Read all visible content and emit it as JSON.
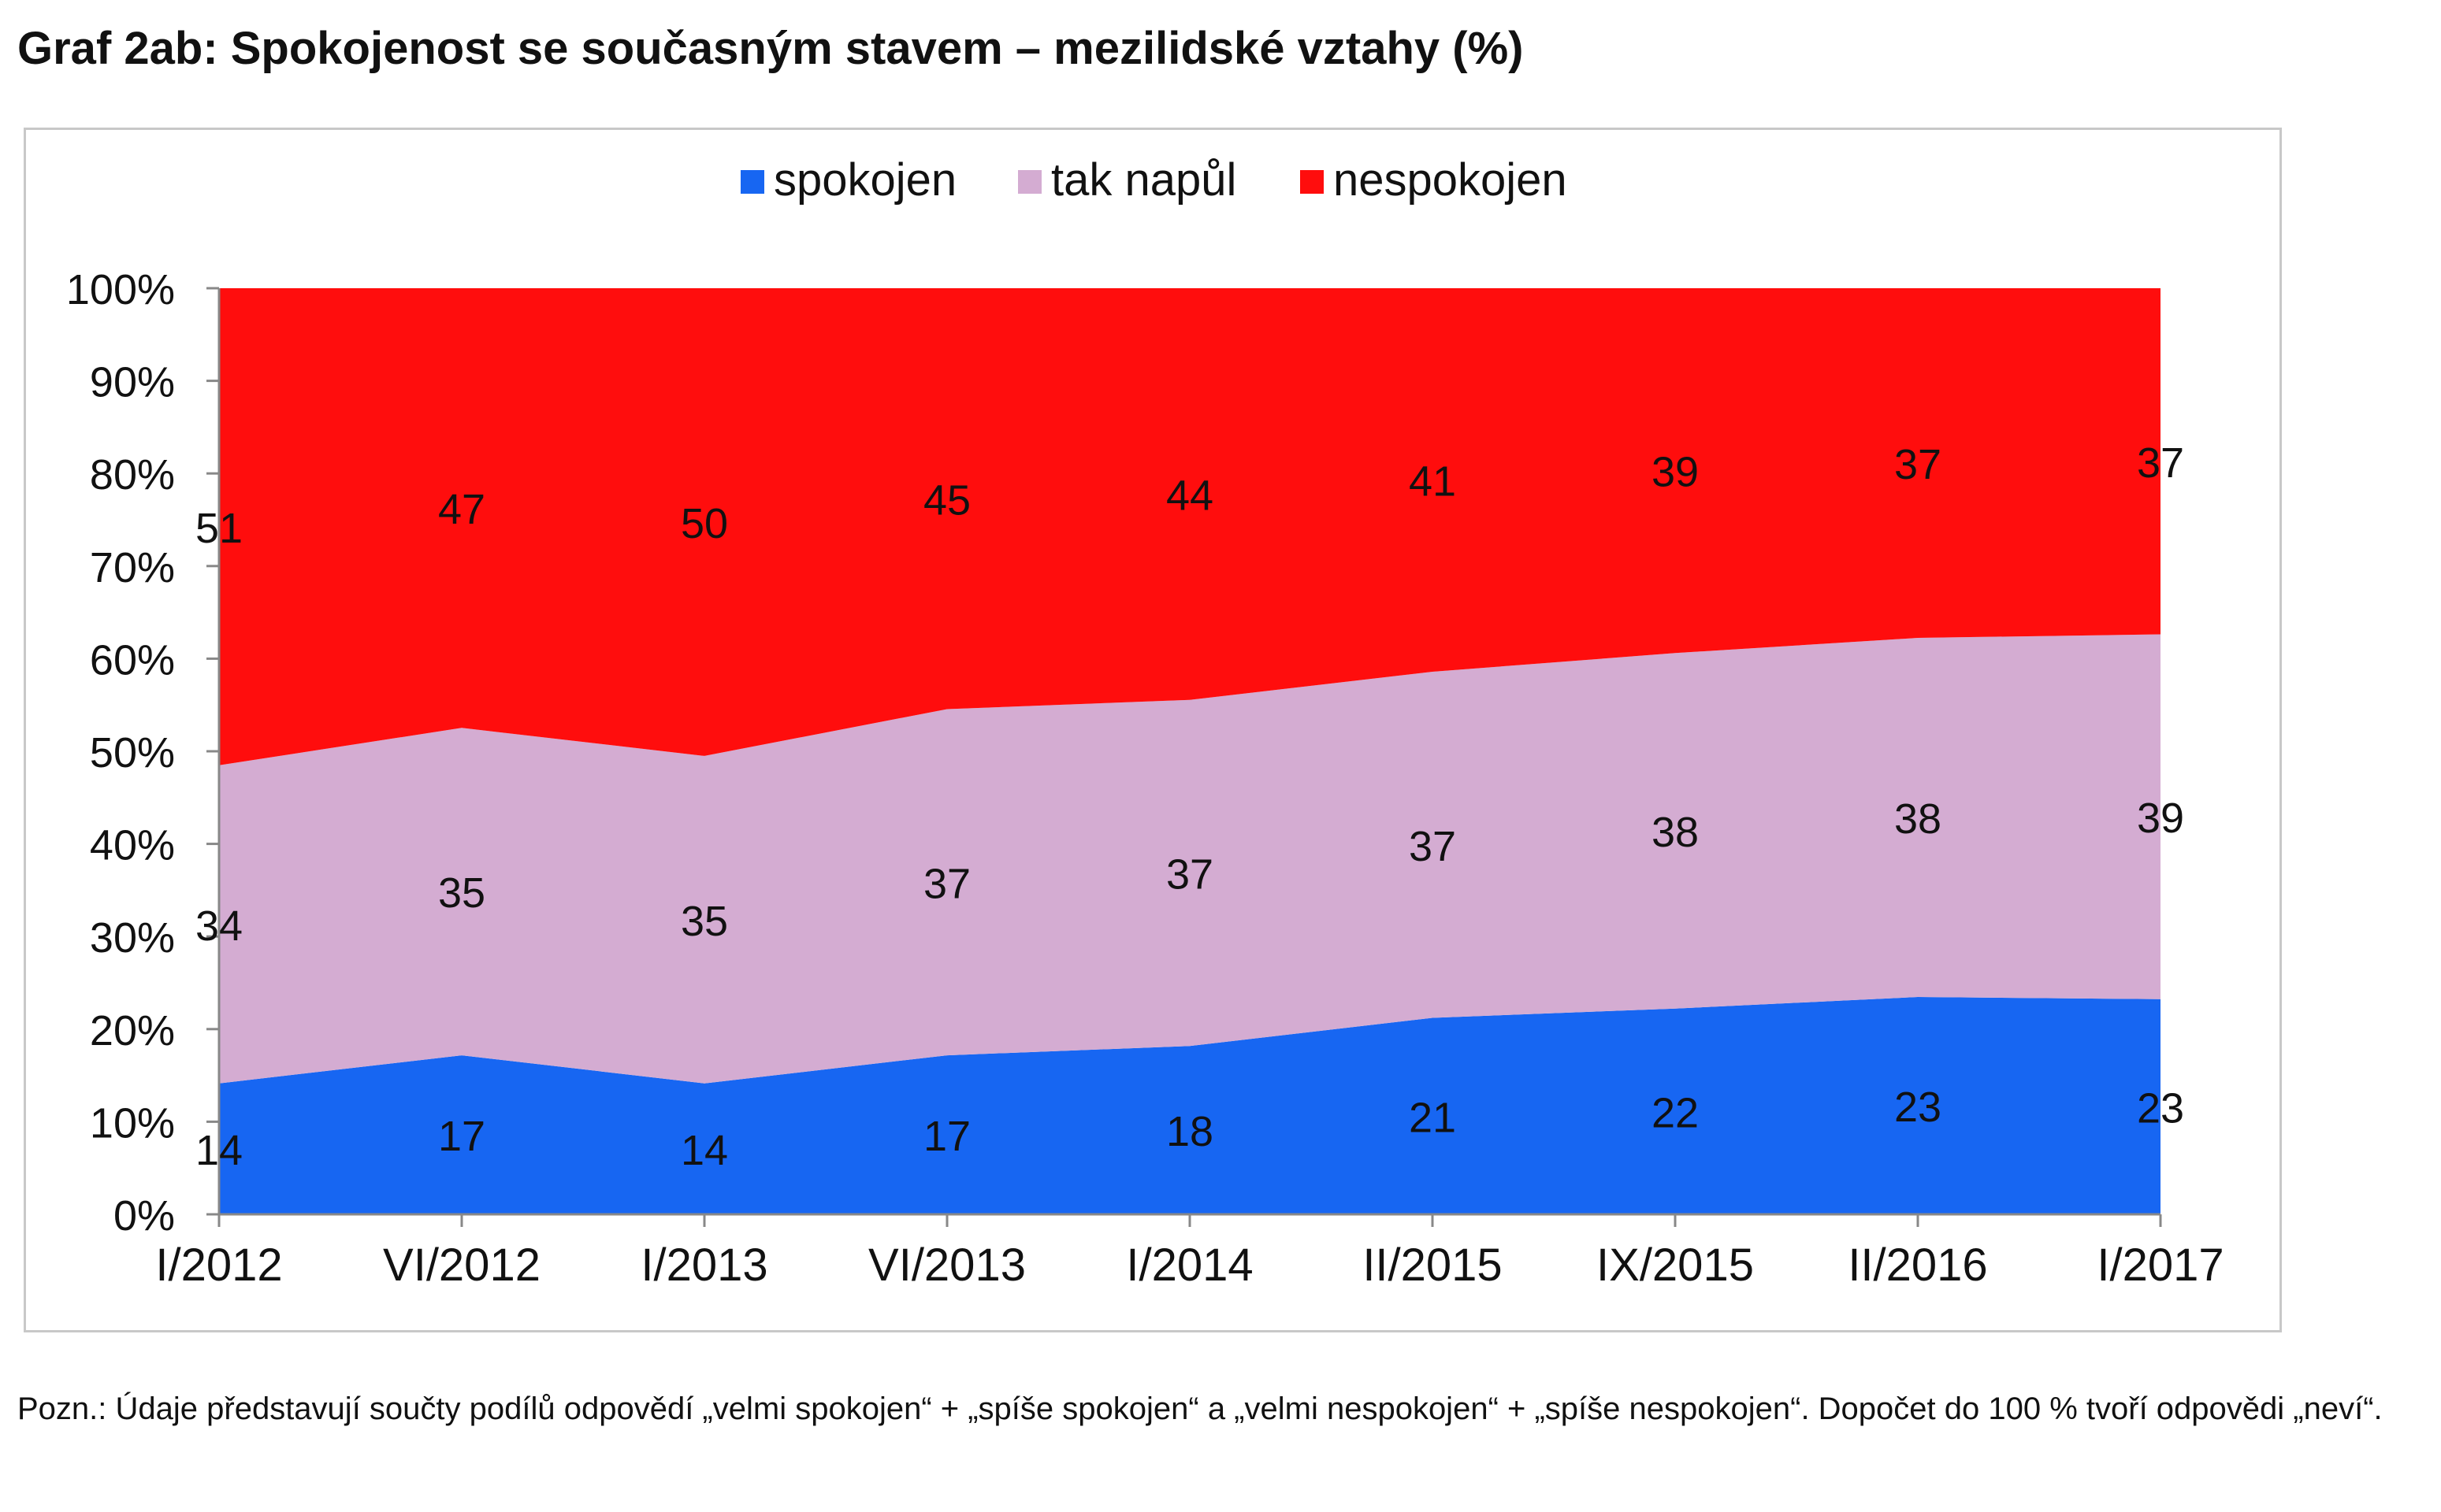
{
  "page": {
    "title": "Graf 2ab: Spokojenost se současným stavem – mezilidské vztahy (%)",
    "note": "Pozn.: Údaje představují součty podílů odpovědí „velmi spokojen“ + „spíše spokojen“ a „velmi nespokojen“ + „spíše nespokojen“. Dopočet do 100 % tvoří odpovědi „neví“."
  },
  "chart_data": {
    "type": "area",
    "stacked": true,
    "categories": [
      "I/2012",
      "VI/2012",
      "I/2013",
      "VI/2013",
      "I/2014",
      "II/2015",
      "IX/2015",
      "II/2016",
      "I/2017"
    ],
    "series": [
      {
        "name": "spokojen",
        "color": "#1766f2",
        "values": [
          14,
          17,
          14,
          17,
          18,
          21,
          22,
          23,
          23
        ]
      },
      {
        "name": "tak napůl",
        "color": "#d4acd2",
        "values": [
          34,
          35,
          35,
          37,
          37,
          37,
          38,
          38,
          39
        ]
      },
      {
        "name": "nespokojen",
        "color": "#ff0d0d",
        "values": [
          51,
          47,
          50,
          45,
          44,
          41,
          39,
          37,
          37
        ]
      }
    ],
    "y_ticks": [
      "0%",
      "10%",
      "20%",
      "30%",
      "40%",
      "50%",
      "60%",
      "70%",
      "80%",
      "90%",
      "100%"
    ],
    "ylim": [
      0,
      100
    ],
    "normalized_to_100": true,
    "grid": false,
    "legend_position": "top",
    "data_labels": true
  }
}
